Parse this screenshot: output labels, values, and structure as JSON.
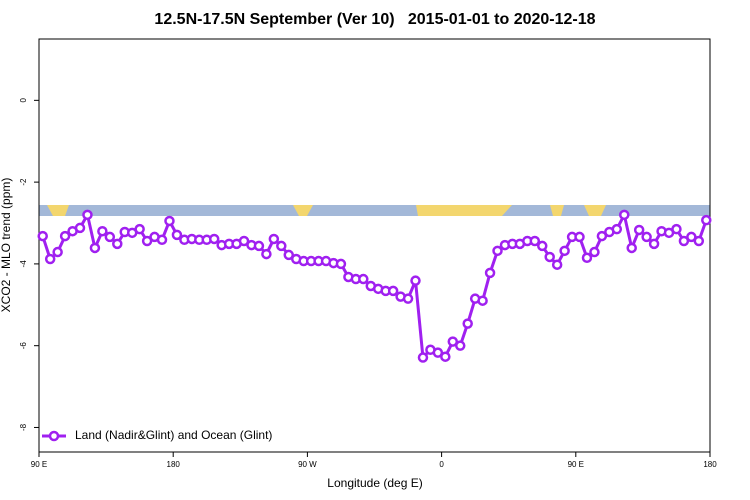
{
  "chart_data": {
    "type": "line",
    "title": "12.5N-17.5N September (Ver 10)   2015-01-01 to 2020-12-18",
    "xlabel": "Longitude (deg E)",
    "ylabel": "XCO2 - MLO trend (ppm)",
    "xlim": [
      90,
      540
    ],
    "ylim": [
      -8.6,
      1.5
    ],
    "xticks": [
      {
        "value": 90,
        "label": "90 E"
      },
      {
        "value": 180,
        "label": "180"
      },
      {
        "value": 270,
        "label": "90 W"
      },
      {
        "value": 360,
        "label": "0"
      },
      {
        "value": 450,
        "label": "90 E"
      },
      {
        "value": 540,
        "label": "180"
      }
    ],
    "yticks": [
      -8,
      -6,
      -4,
      -2,
      0
    ],
    "legend_position": "bottom-left",
    "x": [
      92.5,
      97.5,
      102.5,
      107.5,
      112.5,
      117.5,
      122.5,
      127.5,
      132.5,
      137.5,
      142.5,
      147.5,
      152.5,
      157.5,
      162.5,
      167.5,
      172.5,
      177.5,
      182.5,
      187.5,
      192.5,
      197.5,
      202.5,
      207.5,
      212.5,
      217.5,
      222.5,
      227.5,
      232.5,
      237.5,
      242.5,
      247.5,
      252.5,
      257.5,
      262.5,
      267.5,
      272.5,
      277.5,
      282.5,
      287.5,
      292.5,
      297.5,
      302.5,
      307.5,
      312.5,
      317.5,
      322.5,
      327.5,
      332.5,
      337.5,
      342.5,
      347.5,
      352.5,
      357.5,
      362.5,
      367.5,
      372.5,
      377.5,
      382.5,
      387.5,
      392.5,
      397.5,
      402.5,
      407.5,
      412.5,
      417.5,
      422.5,
      427.5,
      432.5,
      437.5,
      442.5,
      447.5,
      452.5,
      457.5,
      462.5,
      467.5,
      472.5,
      477.5,
      482.5,
      487.5,
      492.5,
      497.5,
      502.5,
      507.5,
      512.5,
      517.5,
      522.5,
      527.5,
      532.5,
      537.5
    ],
    "series": [
      {
        "name": "Land (Nadir&Glint) and Ocean (Glint)",
        "color": "#a020f0",
        "values": [
          -3.32,
          -3.88,
          -3.71,
          -3.32,
          -3.2,
          -3.12,
          -2.8,
          -3.61,
          -3.2,
          -3.34,
          -3.51,
          -3.22,
          -3.24,
          -3.15,
          -3.44,
          -3.34,
          -3.41,
          -2.95,
          -3.29,
          -3.41,
          -3.39,
          -3.41,
          -3.41,
          -3.39,
          -3.54,
          -3.51,
          -3.51,
          -3.44,
          -3.54,
          -3.56,
          -3.76,
          -3.39,
          -3.56,
          -3.78,
          -3.88,
          -3.93,
          -3.93,
          -3.93,
          -3.93,
          -3.98,
          -4.0,
          -4.32,
          -4.37,
          -4.37,
          -4.54,
          -4.61,
          -4.66,
          -4.66,
          -4.8,
          -4.85,
          -4.41,
          -6.29,
          -6.1,
          -6.17,
          -6.27,
          -5.9,
          -6.0,
          -5.46,
          -4.85,
          -4.9,
          -4.22,
          -3.68,
          -3.54,
          -3.51,
          -3.51,
          -3.44,
          -3.44,
          -3.56,
          -3.83,
          -4.02,
          -3.68,
          -3.34,
          -3.34,
          -3.85,
          -3.71,
          -3.32,
          -3.22,
          -3.15,
          -2.8,
          -3.61,
          -3.17,
          -3.34,
          -3.51,
          -3.2,
          -3.24,
          -3.15,
          -3.44,
          -3.34,
          -3.44,
          -2.93
        ]
      }
    ]
  }
}
